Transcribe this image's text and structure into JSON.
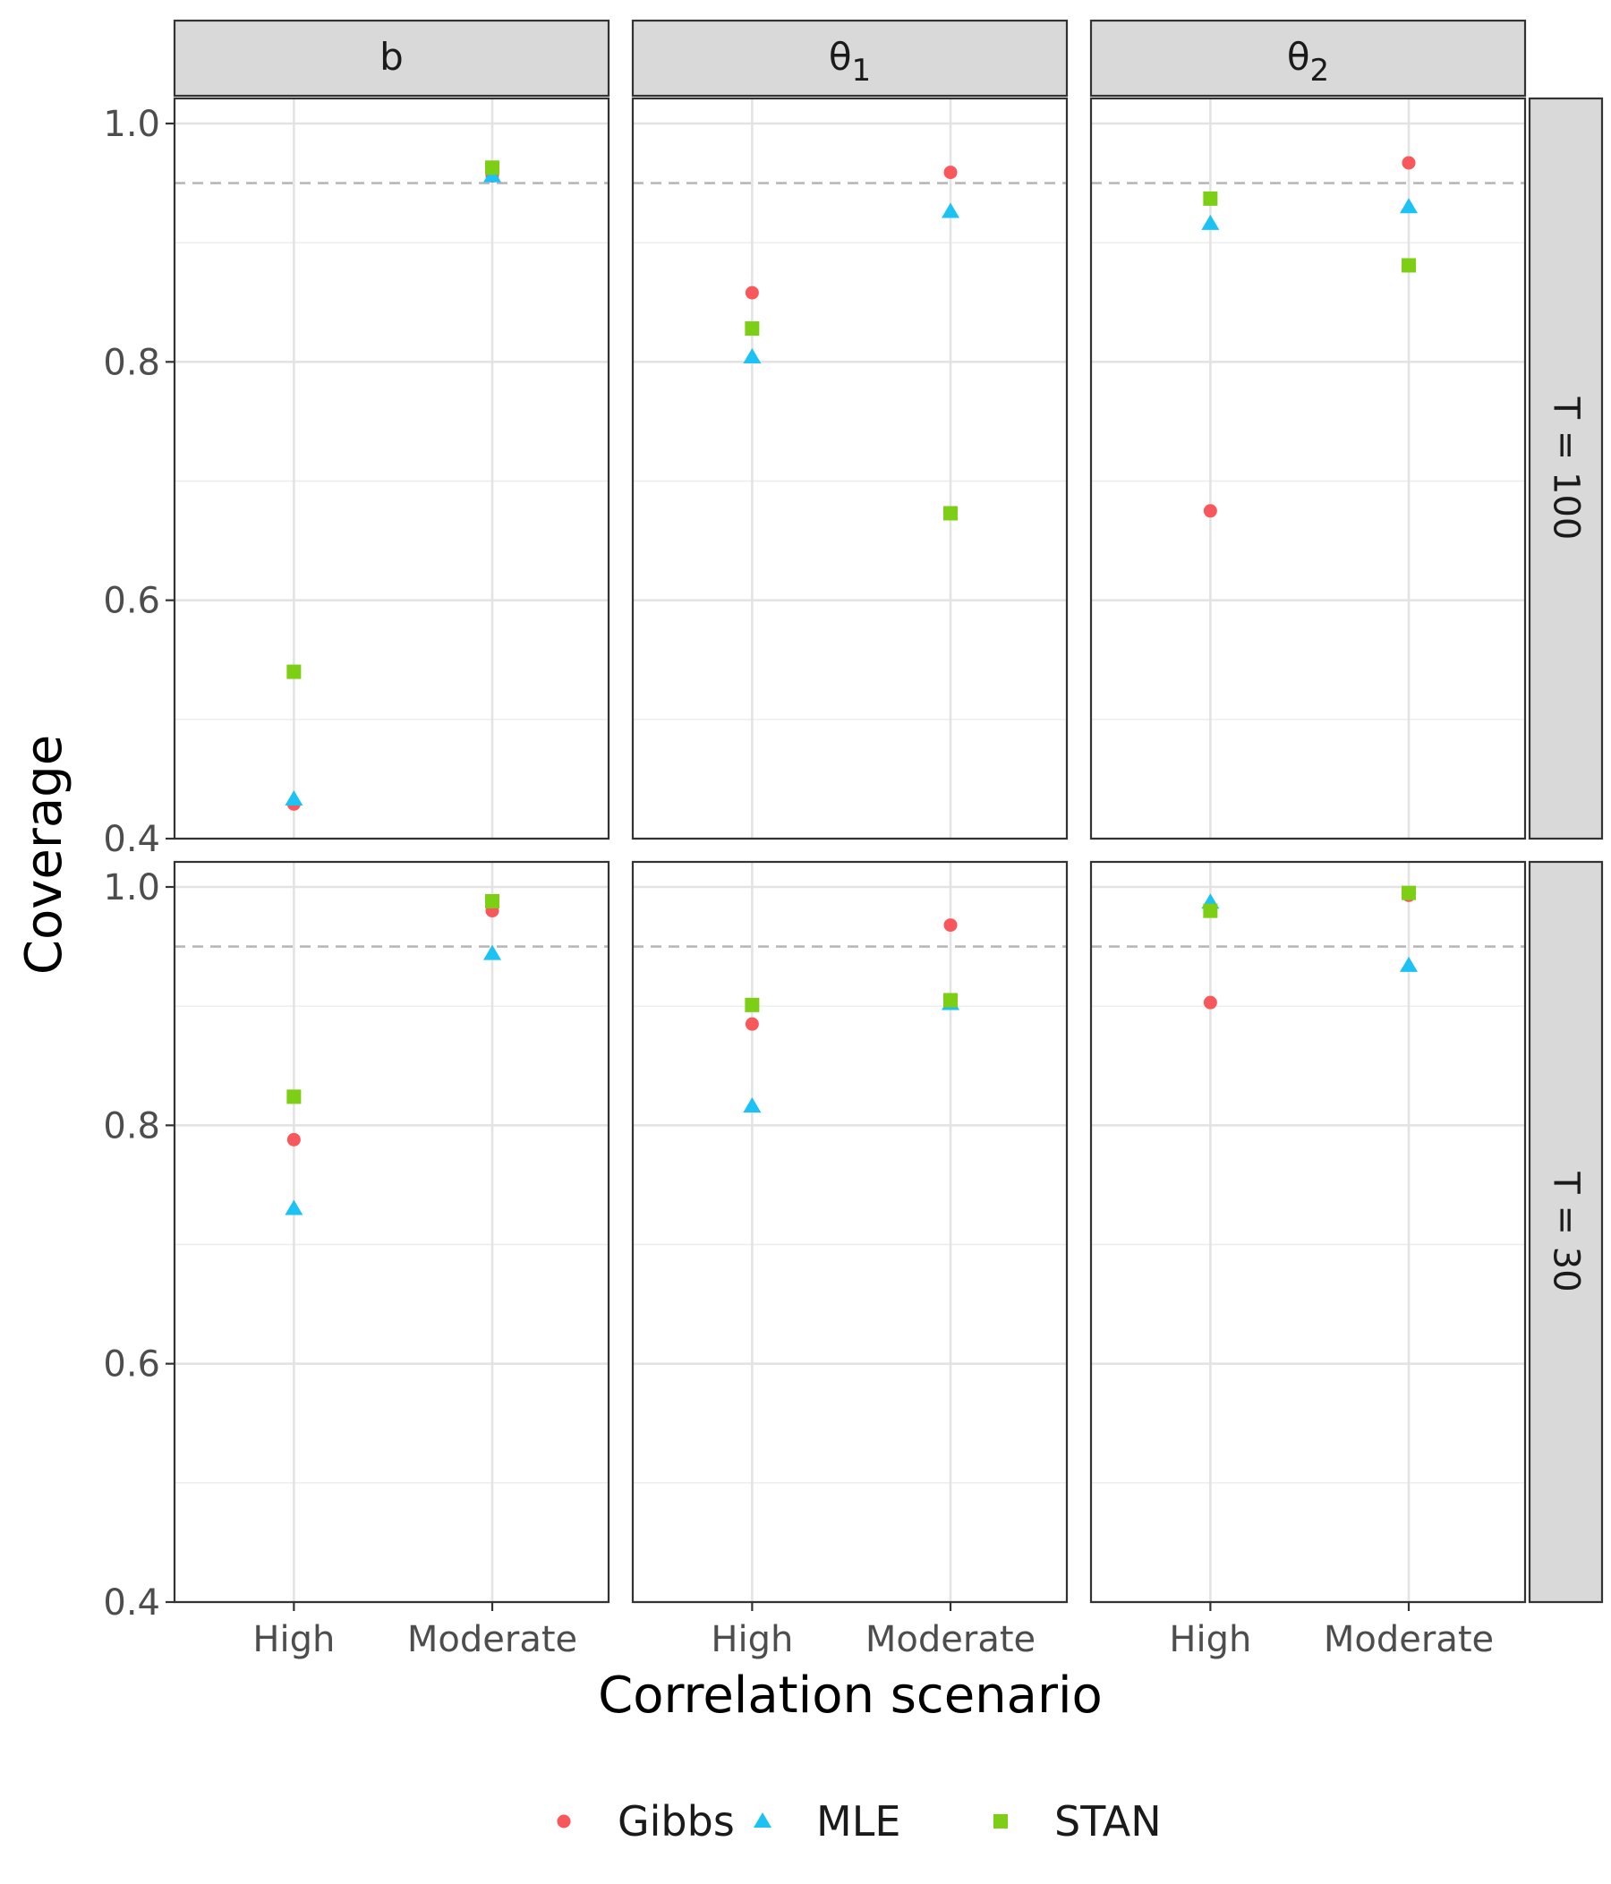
{
  "chart_data": {
    "type": "scatter",
    "facet_columns": [
      {
        "label": "b",
        "subscript": ""
      },
      {
        "label": "θ",
        "subscript": "1"
      },
      {
        "label": "θ",
        "subscript": "2"
      }
    ],
    "facet_rows": [
      "T = 100",
      "T = 30"
    ],
    "categories": [
      "High",
      "Moderate"
    ],
    "xlabel": "Correlation scenario",
    "ylabel": "Coverage",
    "ylim": [
      0.4,
      1.0
    ],
    "yticks": [
      0.4,
      0.6,
      0.8,
      1.0
    ],
    "ytick_labels": [
      "0.4",
      "0.6",
      "0.8",
      "1.0"
    ],
    "reference_line": 0.95,
    "grid": true,
    "legend_position": "bottom",
    "series": [
      {
        "name": "Gibbs",
        "color": "#F8585B",
        "shape": "circle",
        "panels": [
          [
            [
              0.429,
              0.956
            ],
            [
              0.858,
              0.959
            ],
            [
              0.675,
              0.967
            ]
          ],
          [
            [
              0.788,
              0.98
            ],
            [
              0.885,
              0.968
            ],
            [
              0.903,
              0.993
            ]
          ]
        ]
      },
      {
        "name": "MLE",
        "color": "#1BC2F3",
        "shape": "triangle",
        "panels": [
          [
            [
              0.433,
              0.956
            ],
            [
              0.804,
              0.926
            ],
            [
              0.916,
              0.93
            ]
          ],
          [
            [
              0.73,
              0.944
            ],
            [
              0.816,
              0.902
            ],
            [
              0.987,
              0.934
            ]
          ]
        ]
      },
      {
        "name": "STAN",
        "color": "#7CCF14",
        "shape": "square",
        "panels": [
          [
            [
              0.54,
              0.963
            ],
            [
              0.828,
              0.673
            ],
            [
              0.937,
              0.881
            ]
          ],
          [
            [
              0.824,
              0.988
            ],
            [
              0.901,
              0.905
            ],
            [
              0.98,
              0.995
            ]
          ]
        ]
      }
    ]
  }
}
